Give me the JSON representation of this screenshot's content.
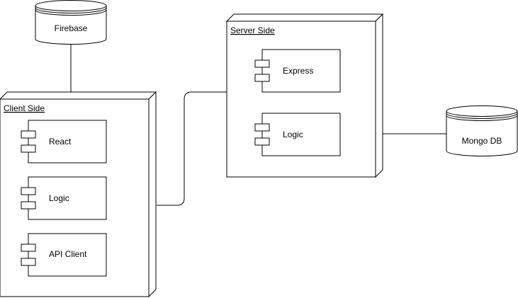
{
  "diagram": {
    "firebase": {
      "label": "Firebase"
    },
    "mongodb": {
      "label": "Mongo DB"
    },
    "client_side": {
      "label": "Client Side",
      "components": {
        "react": "React",
        "logic": "Logic",
        "api_client": "API Client"
      }
    },
    "server_side": {
      "label": "Server Side",
      "components": {
        "express": "Express",
        "logic": "Logic"
      }
    }
  }
}
